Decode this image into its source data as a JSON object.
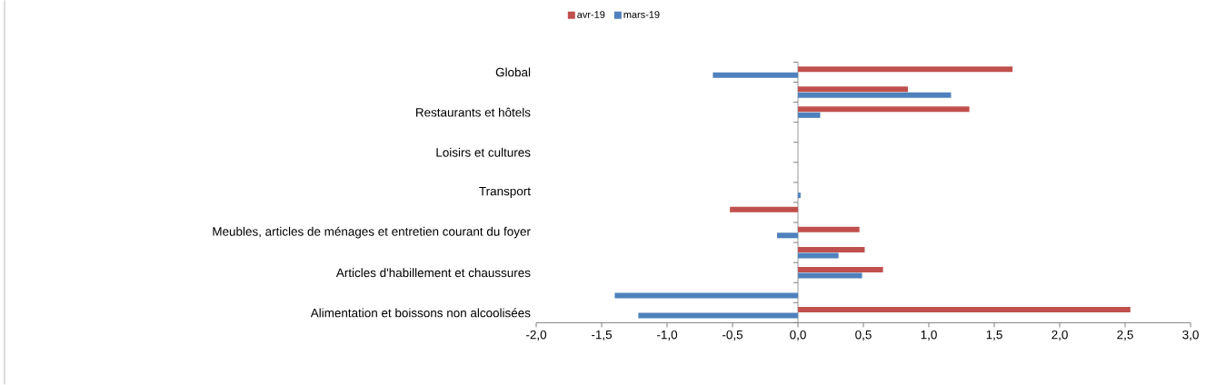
{
  "chart_data": {
    "type": "bar",
    "orientation": "horizontal",
    "legend": "top",
    "categories": [
      "Global",
      null,
      "Restaurants et hôtels",
      null,
      "Loisirs et cultures",
      null,
      "Transport",
      null,
      "Meubles, articles de ménages et entretien courant du foyer",
      null,
      "Articles d'habillement et chaussures",
      null,
      "Alimentation et boissons non alcoolisées"
    ],
    "series": [
      {
        "name": "avr-19",
        "color": "#c0504d",
        "values": [
          1.64,
          0.84,
          1.31,
          null,
          null,
          null,
          null,
          -0.52,
          0.47,
          0.51,
          0.65,
          null,
          2.54
        ]
      },
      {
        "name": "mars-19",
        "color": "#4f81bd",
        "values": [
          -0.65,
          1.17,
          0.17,
          null,
          null,
          null,
          0.02,
          null,
          -0.16,
          0.31,
          0.49,
          -1.4,
          -1.22
        ]
      }
    ],
    "xlim": [
      -2,
      3
    ],
    "xticks": [
      {
        "value": -2,
        "label": "-2,0"
      },
      {
        "value": -1.5,
        "label": "-1,5"
      },
      {
        "value": -1,
        "label": "-1,0"
      },
      {
        "value": -0.5,
        "label": "-0,5"
      },
      {
        "value": 0,
        "label": "0,0"
      },
      {
        "value": 0.5,
        "label": "0,5"
      },
      {
        "value": 1,
        "label": "1,0"
      },
      {
        "value": 1.5,
        "label": "1,5"
      },
      {
        "value": 2,
        "label": "2,0"
      },
      {
        "value": 2.5,
        "label": "2,5"
      },
      {
        "value": 3,
        "label": "3,0"
      }
    ]
  }
}
